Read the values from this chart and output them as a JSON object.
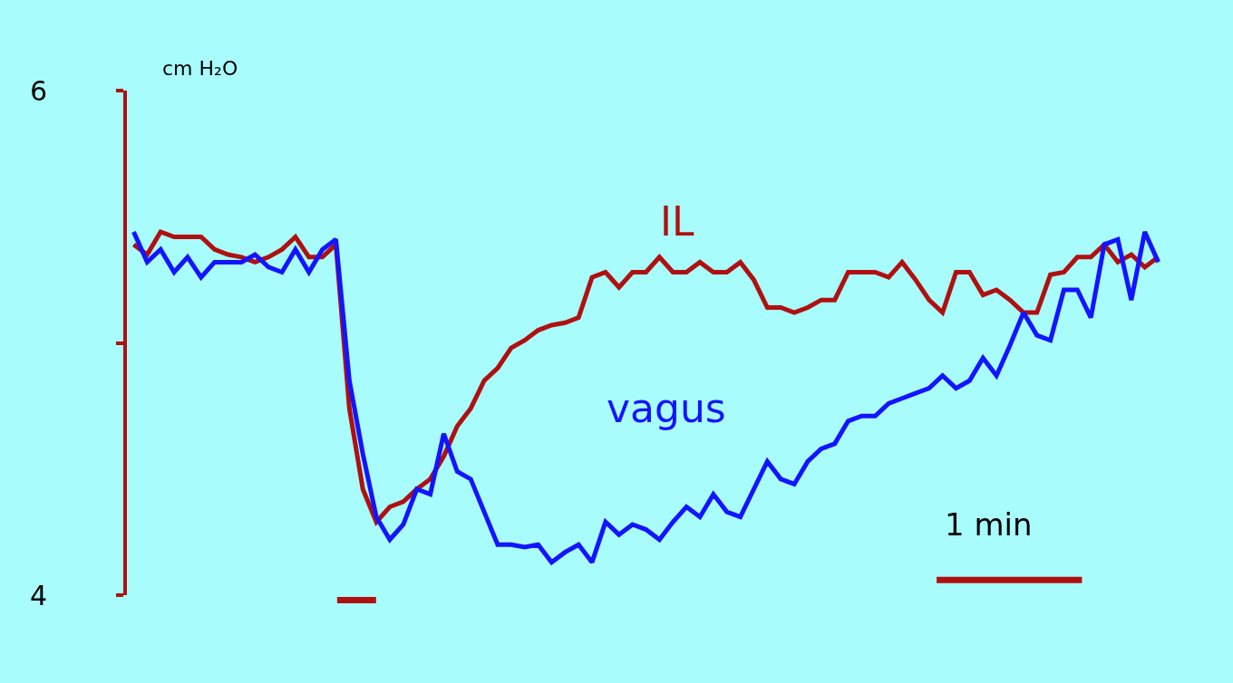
{
  "chart_data": {
    "type": "line",
    "ylabel": "cm H₂O",
    "categories": [
      null,
      null,
      null,
      null,
      null,
      null,
      null,
      null,
      null,
      null,
      null,
      null,
      null,
      null,
      null,
      null,
      null,
      null,
      null,
      null,
      null,
      null,
      null,
      null,
      null,
      null,
      null,
      null,
      null,
      null,
      null,
      null,
      null,
      null,
      null,
      null,
      null,
      null,
      null,
      null,
      null,
      null,
      null,
      null,
      null,
      null,
      null,
      null,
      null,
      null,
      null,
      null,
      null,
      null,
      null,
      null,
      null,
      null,
      null,
      null,
      null,
      null,
      null,
      null,
      null,
      null,
      null,
      null,
      null,
      null,
      null,
      null,
      null,
      null,
      null,
      null,
      null
    ],
    "series": [
      {
        "name": "IL",
        "color": "#b01010",
        "values": [
          5.39,
          5.35,
          5.44,
          5.42,
          5.42,
          5.42,
          5.37,
          5.35,
          5.34,
          5.32,
          5.34,
          5.37,
          5.42,
          5.34,
          5.34,
          5.39,
          4.74,
          4.42,
          4.29,
          4.35,
          4.37,
          4.42,
          4.46,
          4.55,
          4.67,
          4.74,
          4.85,
          4.9,
          4.98,
          5.01,
          5.05,
          5.07,
          5.08,
          5.1,
          5.26,
          5.28,
          5.22,
          5.28,
          5.28,
          5.34,
          5.28,
          5.28,
          5.32,
          5.28,
          5.28,
          5.32,
          5.25,
          5.14,
          5.14,
          5.12,
          5.14,
          5.17,
          5.17,
          5.28,
          5.28,
          5.28,
          5.26,
          5.32,
          5.25,
          5.17,
          5.12,
          5.28,
          5.28,
          5.19,
          5.21,
          5.17,
          5.12,
          5.12,
          5.27,
          5.28,
          5.34,
          5.34,
          5.39,
          5.32,
          5.35,
          5.3,
          5.34
        ]
      },
      {
        "name": "vagus",
        "color": "#1414ff",
        "values": [
          5.44,
          5.32,
          5.37,
          5.28,
          5.34,
          5.26,
          5.32,
          5.32,
          5.32,
          5.35,
          5.3,
          5.28,
          5.37,
          5.28,
          5.37,
          5.41,
          4.85,
          4.56,
          4.31,
          4.22,
          4.28,
          4.42,
          4.4,
          4.64,
          4.49,
          4.46,
          4.33,
          4.2,
          4.2,
          4.19,
          4.2,
          4.13,
          4.17,
          4.2,
          4.13,
          4.29,
          4.24,
          4.28,
          4.26,
          4.22,
          4.29,
          4.35,
          4.31,
          4.4,
          4.33,
          4.31,
          4.42,
          4.53,
          4.46,
          4.44,
          4.53,
          4.58,
          4.6,
          4.69,
          4.71,
          4.71,
          4.76,
          4.78,
          4.8,
          4.82,
          4.87,
          4.82,
          4.85,
          4.94,
          4.87,
          4.99,
          5.12,
          5.03,
          5.01,
          5.21,
          5.21,
          5.1,
          5.39,
          5.41,
          5.17,
          5.44,
          5.32
        ]
      }
    ],
    "ylim": [
      4,
      6
    ],
    "yticks": [
      4,
      {
        "value": 5,
        "label": null
      },
      6
    ],
    "tick_labels": "y",
    "annotations": [
      "1 min"
    ],
    "grid": false,
    "legend": false,
    "line_style": "solid",
    "marker": "none"
  }
}
